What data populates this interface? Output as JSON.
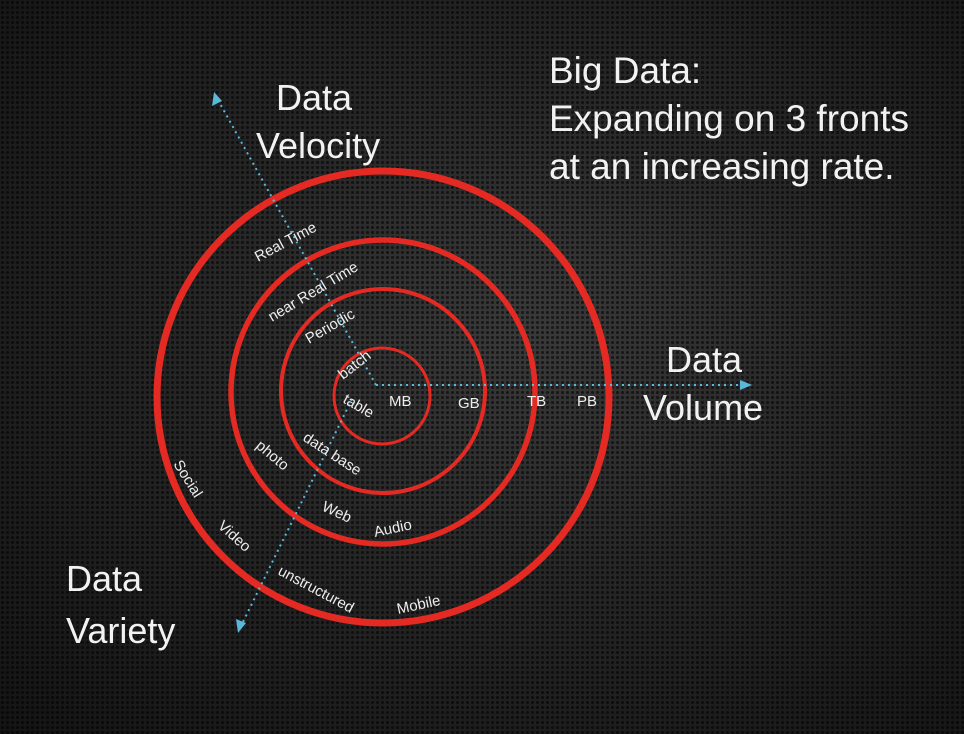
{
  "title": {
    "line1": "Big Data:",
    "line2": "Expanding on 3 fronts",
    "line3": "at an increasing rate."
  },
  "axes": {
    "velocity": {
      "line1": "Data",
      "line2": "Velocity"
    },
    "volume": {
      "line1": "Data",
      "line2": "Volume"
    },
    "variety": {
      "line1": "Data",
      "line2": "Variety"
    }
  },
  "volume_levels": [
    "MB",
    "GB",
    "TB",
    "PB"
  ],
  "velocity_levels": [
    "batch",
    "Periodic",
    "near Real Time",
    "Real Time"
  ],
  "variety_levels": [
    "table",
    "data base",
    "photo",
    "Web",
    "Audio",
    "Social",
    "Video",
    "unstructured",
    "Mobile"
  ],
  "colors": {
    "ring": "#e42a22",
    "axis": "#5ab8d8",
    "text": "#f2f2f2",
    "background": "#1c1c1c"
  }
}
